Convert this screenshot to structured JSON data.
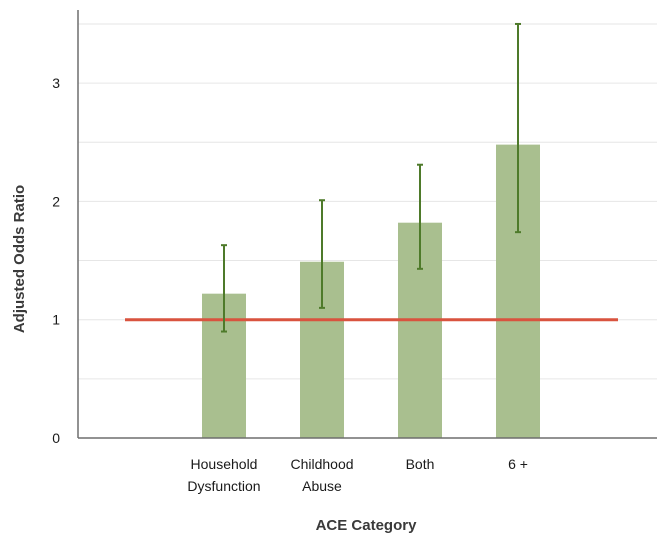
{
  "chart_data": {
    "type": "bar",
    "xlabel": "ACE Category",
    "ylabel": "Adjusted Odds Ratio",
    "categories": [
      [
        "Household",
        "Dysfunction"
      ],
      [
        "Childhood",
        "Abuse"
      ],
      [
        "Both"
      ],
      [
        "6 +"
      ]
    ],
    "series": [
      {
        "values": [
          1.22,
          1.49,
          1.82,
          2.48
        ],
        "error_lower": [
          0.9,
          1.1,
          1.43,
          1.74
        ],
        "error_upper": [
          1.63,
          2.01,
          2.31,
          3.5
        ]
      }
    ],
    "ylim": [
      0,
      3.6
    ],
    "yticks": [
      0,
      1,
      2,
      3
    ],
    "gridlines": [
      0.5,
      1,
      1.5,
      2,
      2.5,
      3,
      3.5
    ],
    "reference_line": 1,
    "grid": true,
    "legend": "none",
    "colors": {
      "bar": "#a9bf8f",
      "error_bar": "#4e7a2a",
      "reference_line": "#d9533f",
      "grid": "#e6e6e6",
      "axis": "#6e6e6e"
    }
  }
}
